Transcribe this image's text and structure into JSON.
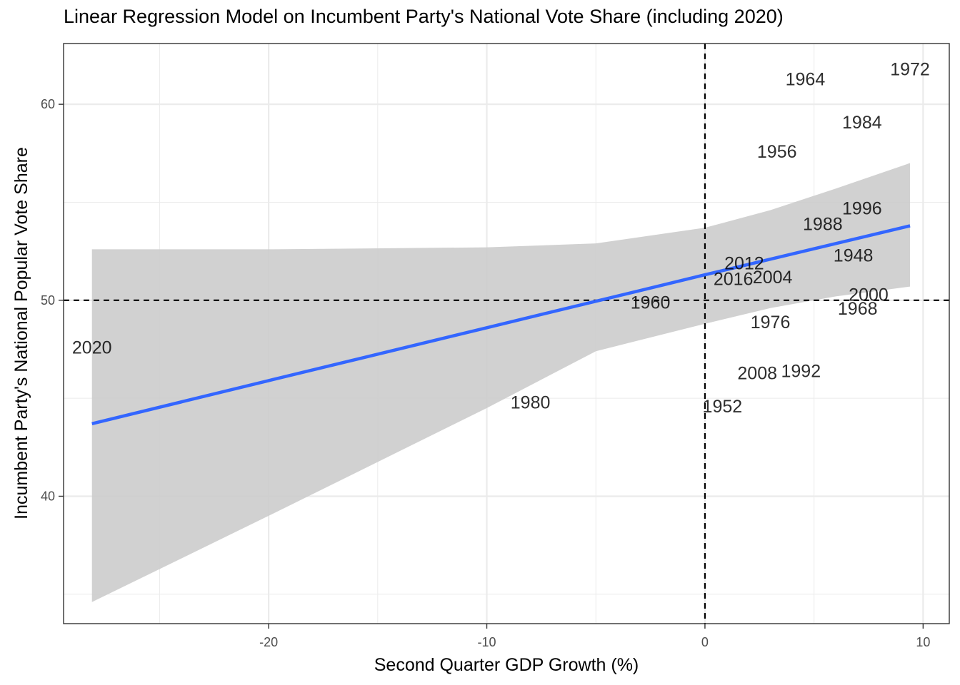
{
  "chart_data": {
    "type": "scatter",
    "title": "Linear Regression Model on Incumbent Party's National Vote Share (including 2020)",
    "xlabel": "Second Quarter GDP Growth (%)",
    "ylabel": "Incumbent Party's National Popular Vote Share",
    "xlim": [
      -29.4,
      11.2
    ],
    "ylim": [
      33.5,
      63.1
    ],
    "x_ticks": [
      -20,
      -10,
      0,
      10
    ],
    "y_ticks": [
      40,
      50,
      60
    ],
    "grid": true,
    "reference_lines": {
      "x": 0,
      "y": 50,
      "style": "dashed"
    },
    "points": [
      {
        "label": "1948",
        "x": 6.8,
        "y": 52.3
      },
      {
        "label": "1952",
        "x": 0.8,
        "y": 44.6
      },
      {
        "label": "1956",
        "x": 3.3,
        "y": 57.6
      },
      {
        "label": "1960",
        "x": -2.5,
        "y": 49.9
      },
      {
        "label": "1964",
        "x": 4.6,
        "y": 61.3
      },
      {
        "label": "1968",
        "x": 7.0,
        "y": 49.6
      },
      {
        "label": "1972",
        "x": 9.4,
        "y": 61.8
      },
      {
        "label": "1976",
        "x": 3.0,
        "y": 48.9
      },
      {
        "label": "1980",
        "x": -8.0,
        "y": 44.8
      },
      {
        "label": "1984",
        "x": 7.2,
        "y": 59.1
      },
      {
        "label": "1988",
        "x": 5.4,
        "y": 53.9
      },
      {
        "label": "1992",
        "x": 4.4,
        "y": 46.4
      },
      {
        "label": "1996",
        "x": 7.2,
        "y": 54.7
      },
      {
        "label": "2000",
        "x": 7.5,
        "y": 50.3
      },
      {
        "label": "2004",
        "x": 3.1,
        "y": 51.2
      },
      {
        "label": "2008",
        "x": 2.4,
        "y": 46.3
      },
      {
        "label": "2012",
        "x": 1.8,
        "y": 51.9
      },
      {
        "label": "2016",
        "x": 1.3,
        "y": 51.1
      },
      {
        "label": "2020",
        "x": -28.1,
        "y": 47.6
      }
    ],
    "regression": {
      "color": "#3366FF",
      "band_color": "#cccccc",
      "fit": [
        [
          -28.1,
          43.7
        ],
        [
          -20.0,
          45.9
        ],
        [
          -10.0,
          48.6
        ],
        [
          0.0,
          51.3
        ],
        [
          9.4,
          53.8
        ]
      ],
      "ci_upper": [
        [
          -28.1,
          52.6
        ],
        [
          -20.0,
          52.6
        ],
        [
          -10.0,
          52.7
        ],
        [
          -5.0,
          52.9
        ],
        [
          0.0,
          53.7
        ],
        [
          3.0,
          54.6
        ],
        [
          6.0,
          55.7
        ],
        [
          9.4,
          57.0
        ]
      ],
      "ci_lower": [
        [
          -28.1,
          34.6
        ],
        [
          -20.0,
          39.0
        ],
        [
          -10.0,
          44.5
        ],
        [
          -5.0,
          47.4
        ],
        [
          0.0,
          48.8
        ],
        [
          3.0,
          49.6
        ],
        [
          6.0,
          50.2
        ],
        [
          9.4,
          50.7
        ]
      ]
    }
  }
}
